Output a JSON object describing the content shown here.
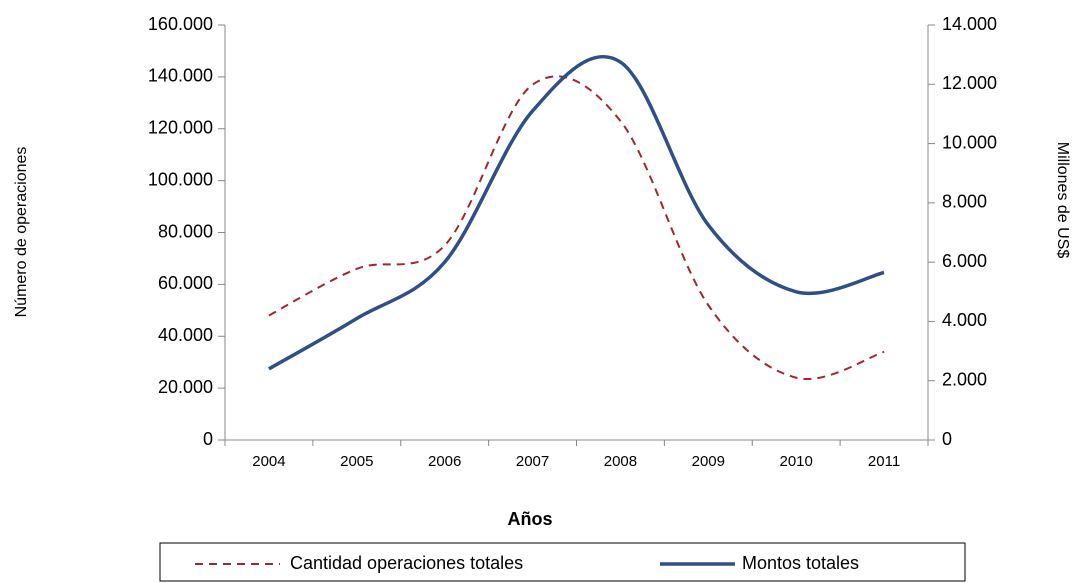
{
  "chart_data": {
    "type": "line",
    "y_label": "Número de operaciones",
    "y2_label": "Millones de US$",
    "x_label": "Años",
    "categories": [
      "2004",
      "2005",
      "2006",
      "2007",
      "2008",
      "2009",
      "2010",
      "2011"
    ],
    "series": [
      {
        "name": "Cantidad operaciones totales",
        "color": "#a0282a",
        "line_style": "dashed",
        "axis": "y",
        "values": [
          48000,
          66000,
          75000,
          137000,
          123000,
          52000,
          24000,
          34000
        ]
      },
      {
        "name": "Montos totales",
        "color": "#2f4f85",
        "line_style": "solid",
        "axis": "y2",
        "values": [
          2400,
          4100,
          6000,
          11100,
          12750,
          7250,
          5000,
          5650
        ]
      }
    ],
    "ylim": [
      0,
      160000
    ],
    "yticks": [
      0,
      {
        "value": 20000,
        "label": "20.000"
      },
      {
        "value": 40000,
        "label": "40.000"
      },
      {
        "value": 60000,
        "label": "60.000"
      },
      {
        "value": 80000,
        "label": "80.000"
      },
      {
        "value": 100000,
        "label": "100.000"
      },
      {
        "value": 120000,
        "label": "120.000"
      },
      {
        "value": 140000,
        "label": "140.000"
      },
      {
        "value": 160000,
        "label": "160.000"
      }
    ],
    "y2lim": [
      0,
      14000
    ],
    "y2ticks": [
      0,
      {
        "value": 2000,
        "label": "2.000"
      },
      {
        "value": 4000,
        "label": "4.000"
      },
      {
        "value": 6000,
        "label": "6.000"
      },
      {
        "value": 8000,
        "label": "8.000"
      },
      {
        "value": 10000,
        "label": "10.000"
      },
      {
        "value": 12000,
        "label": "12.000"
      },
      {
        "value": 14000,
        "label": "14.000"
      }
    ],
    "grid": false,
    "smooth": true,
    "legend": "bottom"
  }
}
